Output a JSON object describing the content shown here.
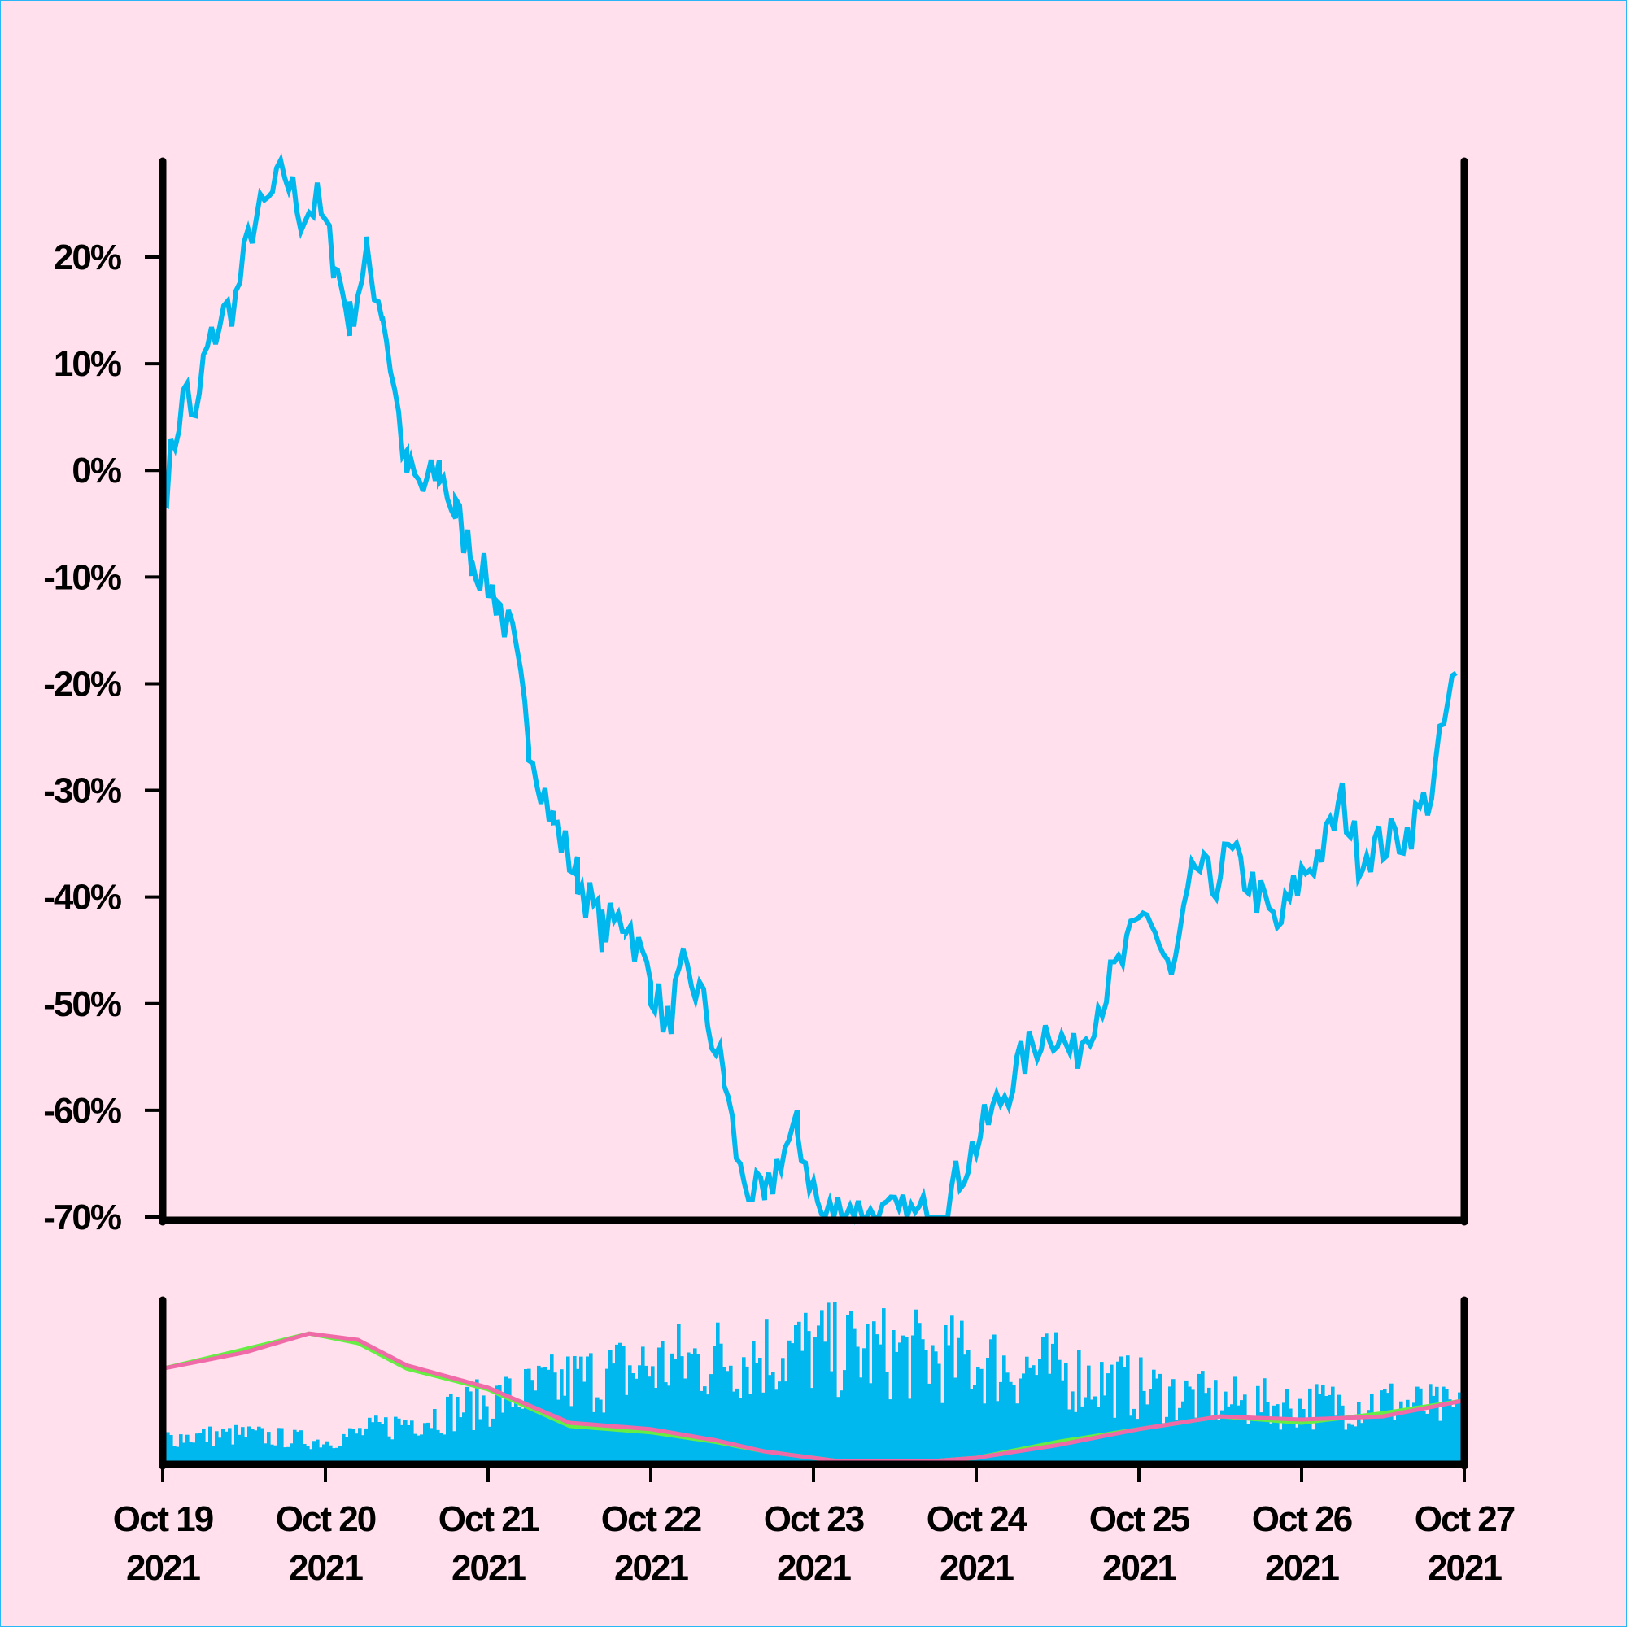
{
  "chart_data": [
    {
      "type": "line",
      "panel": "price",
      "title": "",
      "xlabel": "",
      "ylabel": "",
      "ylim": [
        -70,
        29
      ],
      "y_ticks": [
        20,
        10,
        0,
        -10,
        -20,
        -30,
        -40,
        -50,
        -60,
        -70
      ],
      "y_tick_labels": [
        "20%",
        "10%",
        "0%",
        "-10%",
        "-20%",
        "-30%",
        "-40%",
        "-50%",
        "-60%",
        "-70%"
      ],
      "grid": false,
      "series": [
        {
          "color": "#00b8ee",
          "x_unit": "days since Oct 19 2021",
          "x": [
            0,
            0.05,
            0.1,
            0.15,
            0.2,
            0.25,
            0.35,
            0.45,
            0.55,
            0.65,
            0.75,
            0.85,
            0.95,
            1.05,
            1.15,
            1.25,
            1.35,
            1.5,
            1.6,
            1.7,
            1.8,
            1.9,
            2.05,
            2.15,
            2.25,
            2.4,
            2.55,
            2.7,
            2.85,
            3.0,
            3.1,
            3.2,
            3.3,
            3.45,
            3.55,
            3.7,
            3.8,
            3.9,
            4.05,
            4.2,
            4.35,
            4.5,
            4.65,
            4.8,
            4.9,
            5.0,
            5.15,
            5.3,
            5.45,
            5.6,
            5.75,
            5.9,
            6.05,
            6.2,
            6.35,
            6.45,
            6.55,
            6.7,
            6.85,
            7.0,
            7.15,
            7.25,
            7.35,
            7.5,
            7.65,
            7.8,
            7.9,
            7.95
          ],
          "y": [
            -3,
            1,
            5,
            8,
            4,
            10,
            14,
            16,
            23,
            25,
            28,
            24,
            25,
            20,
            14,
            20,
            15,
            0,
            -2,
            0,
            -4,
            -8,
            -12,
            -16,
            -25,
            -33,
            -38,
            -43,
            -42,
            -48,
            -52,
            -47,
            -49,
            -57,
            -66,
            -69,
            -64,
            -62,
            -70,
            -69,
            -70,
            -70,
            -70,
            -69,
            -66,
            -63,
            -59,
            -55,
            -52,
            -55,
            -50,
            -46,
            -41,
            -48,
            -37,
            -39,
            -36,
            -39,
            -43,
            -38,
            -35,
            -31,
            -36,
            -35,
            -34,
            -30,
            -22,
            -19
          ]
        }
      ]
    },
    {
      "type": "bar",
      "panel": "volume",
      "title": "",
      "xlabel": "",
      "ylabel": "",
      "x_tick_labels": [
        {
          "month_day": "Oct 19",
          "year": "2021"
        },
        {
          "month_day": "Oct 20",
          "year": "2021"
        },
        {
          "month_day": "Oct 21",
          "year": "2021"
        },
        {
          "month_day": "Oct 22",
          "year": "2021"
        },
        {
          "month_day": "Oct 23",
          "year": "2021"
        },
        {
          "month_day": "Oct 24",
          "year": "2021"
        },
        {
          "month_day": "Oct 25",
          "year": "2021"
        },
        {
          "month_day": "Oct 26",
          "year": "2021"
        },
        {
          "month_day": "Oct 27",
          "year": "2021"
        }
      ],
      "grid": false,
      "volume_color": "#00b8ee",
      "volume_profile": {
        "x": [
          0,
          0.5,
          1.0,
          1.5,
          2.0,
          2.5,
          3.0,
          3.5,
          4.0,
          4.5,
          5.0,
          5.5,
          6.0,
          6.5,
          7.0,
          7.5,
          8.0
        ],
        "level": [
          0.18,
          0.2,
          0.15,
          0.3,
          0.45,
          0.6,
          0.72,
          0.8,
          0.85,
          0.82,
          0.75,
          0.68,
          0.55,
          0.45,
          0.42,
          0.45,
          0.38
        ]
      },
      "series": [
        {
          "name": "",
          "color": "#66ee44",
          "x": [
            0,
            0.5,
            0.9,
            1.2,
            1.5,
            2.0,
            2.5,
            3.0,
            3.4,
            3.7,
            4.0,
            4.3,
            4.6,
            5.0,
            5.5,
            6.0,
            6.5,
            7.0,
            7.5,
            8.0
          ],
          "level": [
            0.58,
            0.7,
            0.8,
            0.74,
            0.58,
            0.45,
            0.22,
            0.18,
            0.12,
            0.06,
            0.02,
            -0.02,
            -0.01,
            0.02,
            0.12,
            0.2,
            0.28,
            0.24,
            0.3,
            0.38
          ]
        },
        {
          "name": "",
          "color": "#f06aa8",
          "x": [
            0,
            0.5,
            0.9,
            1.2,
            1.5,
            2.0,
            2.5,
            3.0,
            3.4,
            3.7,
            4.0,
            4.3,
            4.6,
            5.0,
            5.5,
            6.0,
            6.5,
            7.0,
            7.5,
            8.0
          ],
          "level": [
            0.58,
            0.68,
            0.8,
            0.76,
            0.6,
            0.46,
            0.24,
            0.2,
            0.13,
            0.06,
            0.02,
            -0.02,
            -0.01,
            0.02,
            0.1,
            0.2,
            0.28,
            0.26,
            0.28,
            0.38
          ]
        }
      ]
    }
  ]
}
